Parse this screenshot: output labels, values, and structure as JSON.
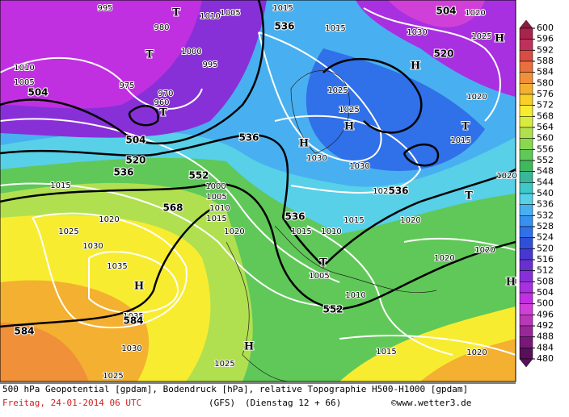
{
  "map": {
    "labels": [
      "995",
      "T",
      "1005",
      "1010",
      "1015",
      "536",
      "1015",
      "504",
      "1020",
      "1030",
      "1025",
      "H",
      "T",
      "980",
      "1000",
      "995",
      "520",
      "H",
      "1010",
      "1005",
      "504",
      "975",
      "970",
      "960",
      "T",
      "1025",
      "1020",
      "1025",
      "H",
      "T",
      "536",
      "H",
      "504",
      "1015",
      "520",
      "1030",
      "1030",
      "536",
      "552",
      "1000",
      "1015",
      "1025",
      "536",
      "T",
      "1020",
      "1005",
      "568",
      "1010",
      "1015",
      "536",
      "1015",
      "1020",
      "1020",
      "1020",
      "1015",
      "1010",
      "1025",
      "1030",
      "1020",
      "1020",
      "T",
      "1035",
      "1005",
      "H",
      "1010",
      "552",
      "1035",
      "584",
      "584",
      "1030",
      "1015",
      "1020",
      "H",
      "1025",
      "1025",
      "H"
    ]
  },
  "colorbar": {
    "levels": [
      600,
      596,
      592,
      588,
      584,
      580,
      576,
      572,
      568,
      564,
      560,
      556,
      552,
      548,
      544,
      540,
      536,
      532,
      528,
      524,
      520,
      516,
      512,
      508,
      504,
      500,
      496,
      492,
      488,
      484,
      480
    ],
    "colors": [
      "#8c1c3c",
      "#a8244c",
      "#c0305c",
      "#d84c44",
      "#e8703c",
      "#f09038",
      "#f4b030",
      "#f8d028",
      "#f8ec30",
      "#d8ec40",
      "#b0e050",
      "#88d850",
      "#60c858",
      "#40b860",
      "#38b898",
      "#40c8c8",
      "#58d0e8",
      "#48b0f0",
      "#3890f0",
      "#3070e8",
      "#3050d8",
      "#4838d0",
      "#6830d0",
      "#8830d8",
      "#a830e0",
      "#c030e0",
      "#d040d8",
      "#b838b8",
      "#982898",
      "#781878",
      "#581058"
    ]
  },
  "footer": {
    "line1": "500 hPa Geopotential [gpdam], Bodendruck [hPa], relative Topographie H500-H1000 [gpdam]",
    "date": "Freitag, 24-01-2014  06 UTC",
    "model": "(GFS)",
    "run": "(Dienstag 12 + 66)",
    "credit": "©www.wetter3.de"
  }
}
